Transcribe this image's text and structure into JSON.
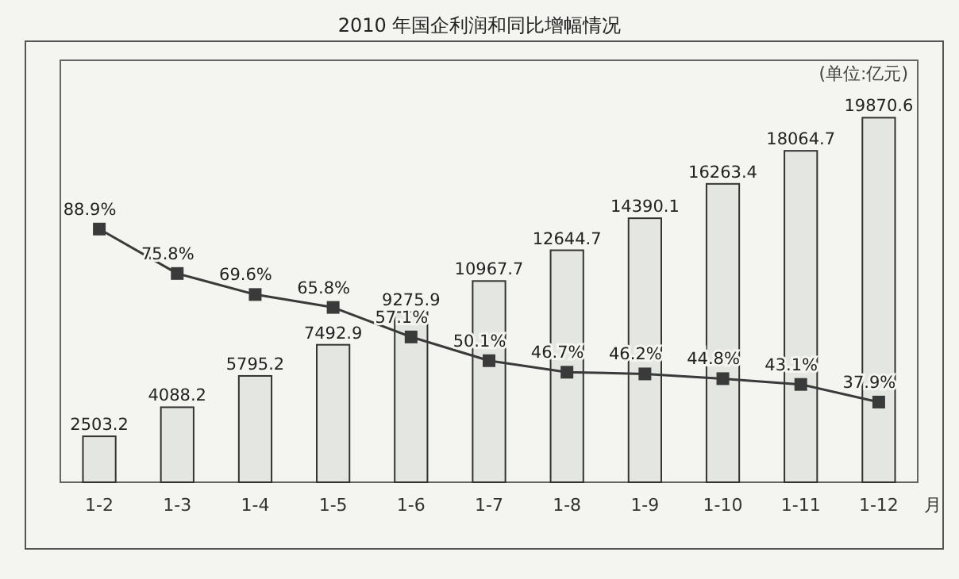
{
  "chart_data": {
    "type": "bar",
    "title": "2010 年国企利润和同比增幅情况",
    "xlabel": "月",
    "annotations": [
      "(单位:亿元)"
    ],
    "categories": [
      "1-2",
      "1-3",
      "1-4",
      "1-5",
      "1-6",
      "1-7",
      "1-8",
      "1-9",
      "1-10",
      "1-11",
      "1-12"
    ],
    "series": [
      {
        "color": "#e4e6e2",
        "values": [
          2503.2,
          4088.2,
          5795.2,
          7492.9,
          9275.9,
          10967.7,
          12644.7,
          14390.1,
          16263.4,
          18064.7,
          19870.6
        ]
      },
      {
        "type": "line",
        "axis": "y2",
        "color": "#3a3a3a",
        "marker": "square",
        "values": [
          88.9,
          75.8,
          69.6,
          65.8,
          57.1,
          50.1,
          46.7,
          46.2,
          44.8,
          43.1,
          37.9
        ],
        "value_labels": [
          "88.9%",
          "75.8%",
          "69.6%",
          "65.8%",
          "57.1%",
          "50.1%",
          "46.7%",
          "46.2%",
          "44.8%",
          "43.1%",
          "37.9%"
        ]
      }
    ],
    "ylim": [
      0,
      23000
    ],
    "data_labels": true
  }
}
